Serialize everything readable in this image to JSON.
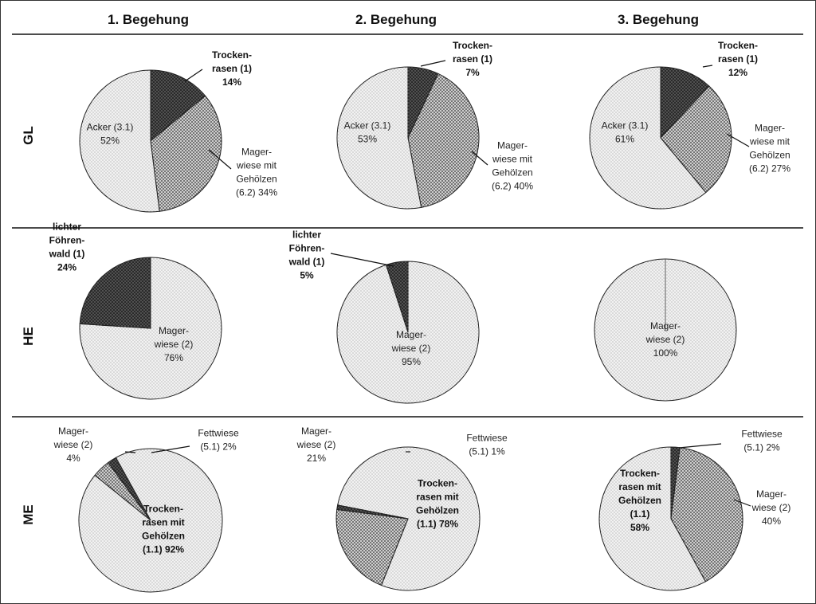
{
  "columns": [
    "1. Begehung",
    "2. Begehung",
    "3. Begehung"
  ],
  "rows": [
    "GL",
    "HE",
    "ME"
  ],
  "patterns": {
    "Trockenrasen": "#333333",
    "Magerwiese_Gehoelz": "#9a9a9a",
    "Acker": "#d8d8d8",
    "Foehrenwald": "#333333",
    "Magerwiese": "#d8d8d8",
    "Fettwiese": "#333333",
    "Trockenrasen_Gehoelz": "#d8d8d8"
  },
  "chart_data": [
    {
      "type": "pie",
      "row": "GL",
      "column": "1. Begehung",
      "slices": [
        {
          "lines": [
            "Trocken-",
            "rasen (1)",
            "14%"
          ],
          "value": 14,
          "bold": true,
          "pattern": "dark"
        },
        {
          "lines": [
            "Mager-",
            "wiese mit",
            "Gehölzen",
            "(6.2) 34%"
          ],
          "value": 34,
          "bold": false,
          "pattern": "medium"
        },
        {
          "lines": [
            "Acker (3.1)",
            "52%"
          ],
          "value": 52,
          "bold": false,
          "pattern": "light"
        }
      ]
    },
    {
      "type": "pie",
      "row": "GL",
      "column": "2. Begehung",
      "slices": [
        {
          "lines": [
            "Trocken-",
            "rasen (1)",
            "7%"
          ],
          "value": 7,
          "bold": true,
          "pattern": "dark"
        },
        {
          "lines": [
            "Mager-",
            "wiese mit",
            "Gehölzen",
            "(6.2) 40%"
          ],
          "value": 40,
          "bold": false,
          "pattern": "medium"
        },
        {
          "lines": [
            "Acker (3.1)",
            "53%"
          ],
          "value": 53,
          "bold": false,
          "pattern": "light"
        }
      ]
    },
    {
      "type": "pie",
      "row": "GL",
      "column": "3. Begehung",
      "slices": [
        {
          "lines": [
            "Trocken-",
            "rasen (1)",
            "12%"
          ],
          "value": 12,
          "bold": true,
          "pattern": "dark"
        },
        {
          "lines": [
            "Mager-",
            "wiese mit",
            "Gehölzen",
            "(6.2) 27%"
          ],
          "value": 27,
          "bold": false,
          "pattern": "medium"
        },
        {
          "lines": [
            "Acker (3.1)",
            "61%"
          ],
          "value": 61,
          "bold": false,
          "pattern": "light"
        }
      ]
    },
    {
      "type": "pie",
      "row": "HE",
      "column": "1. Begehung",
      "slices": [
        {
          "lines": [
            "Mager-",
            "wiese (2)",
            "76%"
          ],
          "value": 76,
          "bold": false,
          "pattern": "light"
        },
        {
          "lines": [
            "lichter",
            "Föhren-",
            "wald (1)",
            "24%"
          ],
          "value": 24,
          "bold": true,
          "pattern": "dark"
        }
      ]
    },
    {
      "type": "pie",
      "row": "HE",
      "column": "2. Begehung",
      "slices": [
        {
          "lines": [
            "Mager-",
            "wiese (2)",
            "95%"
          ],
          "value": 95,
          "bold": false,
          "pattern": "light"
        },
        {
          "lines": [
            "lichter",
            "Föhren-",
            "wald (1)",
            "5%"
          ],
          "value": 5,
          "bold": true,
          "pattern": "dark"
        }
      ]
    },
    {
      "type": "pie",
      "row": "HE",
      "column": "3. Begehung",
      "slices": [
        {
          "lines": [
            "Mager-",
            "wiese (2)",
            "100%"
          ],
          "value": 100,
          "bold": false,
          "pattern": "light"
        }
      ]
    },
    {
      "type": "pie",
      "row": "ME",
      "column": "1. Begehung",
      "slices": [
        {
          "lines": [
            "Trocken-",
            "rasen mit",
            "Gehölzen",
            "(1.1) 92%"
          ],
          "value": 92,
          "bold": true,
          "pattern": "light"
        },
        {
          "lines": [
            "Mager-",
            "wiese (2)",
            "4%"
          ],
          "value": 4,
          "bold": false,
          "pattern": "medium"
        },
        {
          "lines": [
            "Fettwiese",
            "(5.1) 2%"
          ],
          "value": 2,
          "bold": false,
          "pattern": "dark"
        }
      ]
    },
    {
      "type": "pie",
      "row": "ME",
      "column": "2. Begehung",
      "slices": [
        {
          "lines": [
            "Trocken-",
            "rasen mit",
            "Gehölzen",
            "(1.1) 78%"
          ],
          "value": 78,
          "bold": true,
          "pattern": "light"
        },
        {
          "lines": [
            "Mager-",
            "wiese (2)",
            "21%"
          ],
          "value": 21,
          "bold": false,
          "pattern": "medium"
        },
        {
          "lines": [
            "Fettwiese",
            "(5.1) 1%"
          ],
          "value": 1,
          "bold": false,
          "pattern": "dark"
        }
      ]
    },
    {
      "type": "pie",
      "row": "ME",
      "column": "3. Begehung",
      "slices": [
        {
          "lines": [
            "Fettwiese",
            "(5.1) 2%"
          ],
          "value": 2,
          "bold": false,
          "pattern": "dark"
        },
        {
          "lines": [
            "Mager-",
            "wiese (2)",
            "40%"
          ],
          "value": 40,
          "bold": false,
          "pattern": "medium"
        },
        {
          "lines": [
            "Trocken-",
            "rasen mit",
            "Gehölzen",
            "(1.1)",
            "58%"
          ],
          "value": 58,
          "bold": true,
          "pattern": "light"
        }
      ]
    }
  ]
}
